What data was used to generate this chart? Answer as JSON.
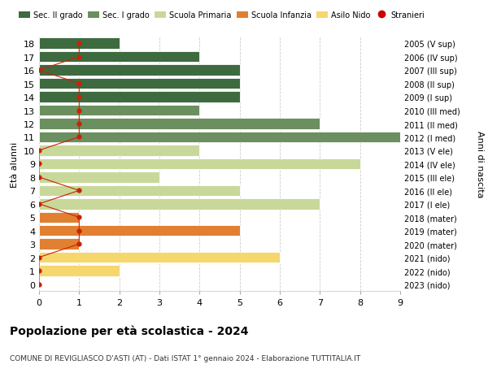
{
  "ages": [
    0,
    1,
    2,
    3,
    4,
    5,
    6,
    7,
    8,
    9,
    10,
    11,
    12,
    13,
    14,
    15,
    16,
    17,
    18
  ],
  "right_labels": [
    "2023 (nido)",
    "2022 (nido)",
    "2021 (nido)",
    "2020 (mater)",
    "2019 (mater)",
    "2018 (mater)",
    "2017 (I ele)",
    "2016 (II ele)",
    "2015 (III ele)",
    "2014 (IV ele)",
    "2013 (V ele)",
    "2012 (I med)",
    "2011 (II med)",
    "2010 (III med)",
    "2009 (I sup)",
    "2008 (II sup)",
    "2007 (III sup)",
    "2006 (IV sup)",
    "2005 (V sup)"
  ],
  "bar_values": [
    0,
    2,
    6,
    1,
    5,
    1,
    7,
    5,
    3,
    8,
    4,
    9,
    7,
    4,
    5,
    5,
    5,
    4,
    2
  ],
  "bar_colors": [
    "#f5d76e",
    "#f5d76e",
    "#f5d76e",
    "#e08030",
    "#e08030",
    "#e08030",
    "#c8d89a",
    "#c8d89a",
    "#c8d89a",
    "#c8d89a",
    "#c8d89a",
    "#6b8f5e",
    "#6b8f5e",
    "#6b8f5e",
    "#3d6b3f",
    "#3d6b3f",
    "#3d6b3f",
    "#3d6b3f",
    "#3d6b3f"
  ],
  "stranieri_values": [
    0,
    0,
    0,
    1,
    1,
    1,
    0,
    1,
    0,
    0,
    0,
    1,
    1,
    1,
    1,
    1,
    0,
    1,
    1
  ],
  "legend_labels": [
    "Sec. II grado",
    "Sec. I grado",
    "Scuola Primaria",
    "Scuola Infanzia",
    "Asilo Nido",
    "Stranieri"
  ],
  "legend_colors": [
    "#3d6b3f",
    "#6b8f5e",
    "#c8d89a",
    "#e08030",
    "#f5d76e",
    "#cc0000"
  ],
  "title": "Popolazione per età scolastica - 2024",
  "subtitle": "COMUNE DI REVIGLIASCO D'ASTI (AT) - Dati ISTAT 1° gennaio 2024 - Elaborazione TUTTITALIA.IT",
  "ylabel_left": "Età alunni",
  "ylabel_right": "Anni di nascita",
  "xlim": [
    0,
    9
  ],
  "bg_color": "#ffffff",
  "grid_color": "#cccccc"
}
